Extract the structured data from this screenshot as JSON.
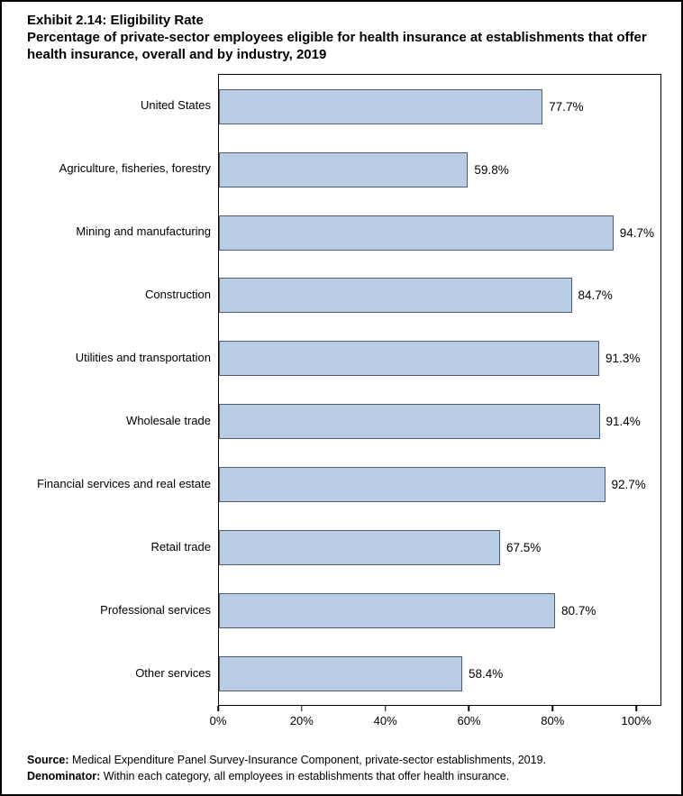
{
  "title": {
    "line1": "Exhibit 2.14: Eligibility Rate",
    "line2": "Percentage of private-sector employees eligible for health insurance at establishments that offer health insurance, overall and by industry, 2019"
  },
  "footer": {
    "source_label": "Source:",
    "source_text": " Medical Expenditure Panel Survey-Insurance Component, private-sector establishments, 2019.",
    "denominator_label": "Denominator:",
    "denominator_text": " Within each category, all employees in establishments that offer health insurance."
  },
  "chart_data": {
    "type": "bar",
    "orientation": "horizontal",
    "title": "Exhibit 2.14: Eligibility Rate",
    "subtitle": "Percentage of private-sector employees eligible for health insurance at establishments that offer health insurance, overall and by industry, 2019",
    "categories": [
      "United States",
      "Agriculture, fisheries, forestry",
      "Mining and manufacturing",
      "Construction",
      "Utilities and transportation",
      "Wholesale trade",
      "Financial services and real estate",
      "Retail trade",
      "Professional services",
      "Other services"
    ],
    "values": [
      77.7,
      59.8,
      94.7,
      84.7,
      91.3,
      91.4,
      92.7,
      67.5,
      80.7,
      58.4
    ],
    "value_labels": [
      "77.7%",
      "59.8%",
      "94.7%",
      "84.7%",
      "91.3%",
      "91.4%",
      "92.7%",
      "67.5%",
      "80.7%",
      "58.4%"
    ],
    "xlabel": "",
    "ylabel": "",
    "xlim": [
      0,
      106
    ],
    "ticks": [
      0,
      20,
      40,
      60,
      80,
      100
    ],
    "tick_labels": [
      "0%",
      "20%",
      "40%",
      "60%",
      "80%",
      "100%"
    ],
    "grid": false,
    "legend": "none",
    "bar_color": "#b9cde5",
    "bar_border_color": "#4f5d6e"
  }
}
